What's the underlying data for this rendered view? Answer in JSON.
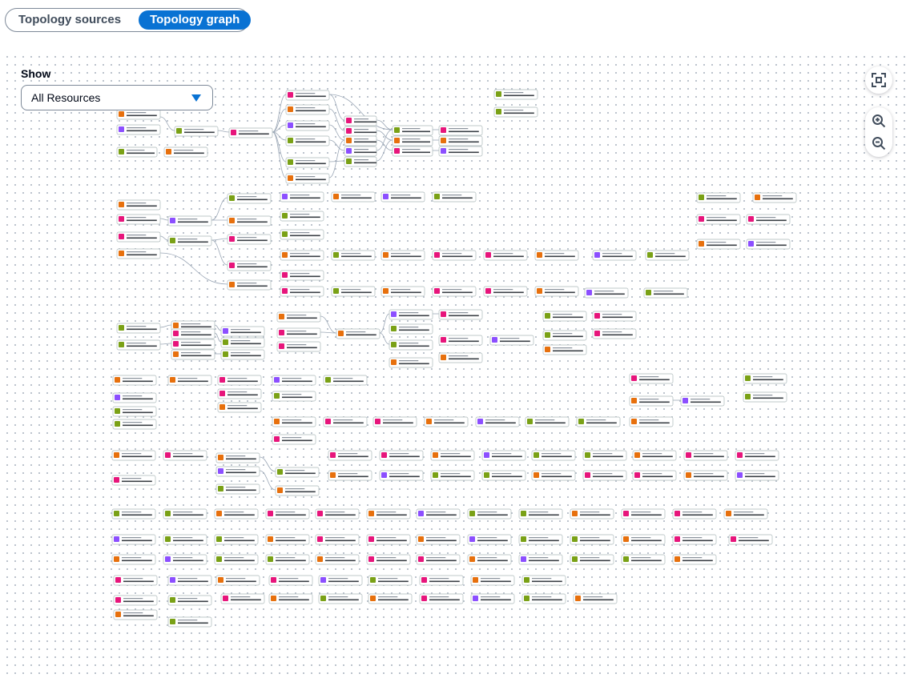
{
  "tabs": [
    {
      "label": "Topology sources",
      "active": false
    },
    {
      "label": "Topology graph",
      "active": true
    }
  ],
  "filter": {
    "label": "Show",
    "selected": "All Resources"
  },
  "controls": {
    "fit_icon": "fit-screen-icon",
    "zoom_in_icon": "zoom-in-icon",
    "zoom_out_icon": "zoom-out-icon"
  },
  "colors": {
    "accent": "#0972d3",
    "node_border": "#aab7b8",
    "edge": "#9ba7b6",
    "service_orange": "#e7700d",
    "service_pink": "#e7157b",
    "service_green": "#7aa116",
    "service_purple": "#8c4fff",
    "service_teal": "#01a88d"
  }
}
